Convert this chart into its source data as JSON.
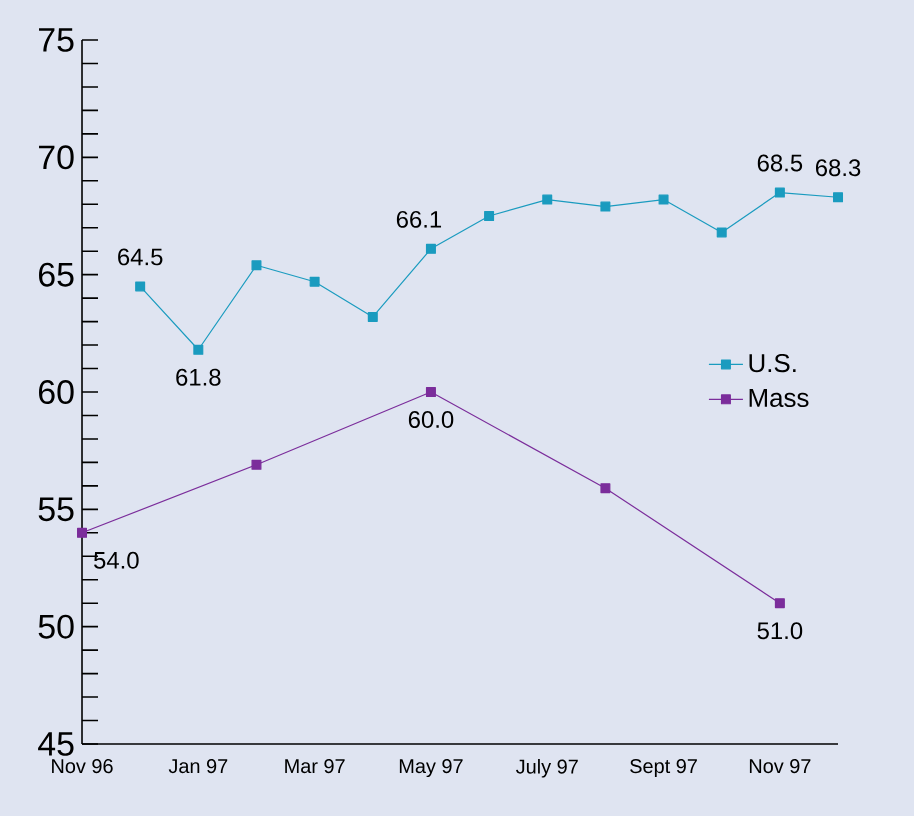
{
  "chart_data": {
    "type": "line",
    "x": [
      "1996-12",
      "1997-01",
      "1997-02",
      "1997-03",
      "1997-04",
      "1997-05",
      "1997-06",
      "1997-07",
      "1997-08",
      "1997-09",
      "1997-10",
      "1997-11",
      "1997-12"
    ],
    "series": [
      {
        "name": "U.S.",
        "color": "#1a9bbf",
        "values": [
          64.5,
          61.8,
          65.4,
          64.7,
          63.2,
          66.1,
          67.5,
          68.2,
          67.9,
          68.2,
          66.8,
          68.5,
          68.3
        ],
        "value_labels": [
          "64.5",
          "61.8",
          null,
          null,
          null,
          "66.1",
          null,
          null,
          null,
          null,
          null,
          "68.5",
          "68.3"
        ]
      },
      {
        "name": "Mass",
        "color": "#7b2d9b",
        "x": [
          "1996-11",
          "1997-02",
          "1997-05",
          "1997-08",
          "1997-11"
        ],
        "values": [
          54.0,
          56.9,
          60.0,
          55.9,
          51.0
        ],
        "value_labels": [
          "54.0",
          null,
          "60.0",
          null,
          "51.0"
        ]
      }
    ],
    "xlim": [
      "1996-11",
      "1997-12"
    ],
    "xticks": [
      {
        "value": "1996-11",
        "label": "Nov 96"
      },
      {
        "value": "1997-01",
        "label": "Jan 97"
      },
      {
        "value": "1997-03",
        "label": "Mar 97"
      },
      {
        "value": "1997-05",
        "label": "May 97"
      },
      {
        "value": "1997-07",
        "label": "July 97"
      },
      {
        "value": "1997-09",
        "label": "Sept 97"
      },
      {
        "value": "1997-11",
        "label": "Nov 97"
      }
    ],
    "ylim": [
      45,
      75
    ],
    "yticks": [
      45,
      {
        "value": 46,
        "label": null
      },
      {
        "value": 47,
        "label": null
      },
      {
        "value": 48,
        "label": null
      },
      {
        "value": 49,
        "label": null
      },
      50,
      {
        "value": 51,
        "label": null
      },
      {
        "value": 52,
        "label": null
      },
      {
        "value": 53,
        "label": null
      },
      {
        "value": 54,
        "label": null
      },
      55,
      {
        "value": 56,
        "label": null
      },
      {
        "value": 57,
        "label": null
      },
      {
        "value": 58,
        "label": null
      },
      {
        "value": 59,
        "label": null
      },
      60,
      {
        "value": 61,
        "label": null
      },
      {
        "value": 62,
        "label": null
      },
      {
        "value": 63,
        "label": null
      },
      {
        "value": 64,
        "label": null
      },
      65,
      {
        "value": 66,
        "label": null
      },
      {
        "value": 67,
        "label": null
      },
      {
        "value": 68,
        "label": null
      },
      {
        "value": 69,
        "label": null
      },
      70,
      {
        "value": 71,
        "label": null
      },
      {
        "value": 72,
        "label": null
      },
      {
        "value": 73,
        "label": null
      },
      {
        "value": 74,
        "label": null
      },
      75
    ],
    "legend": "right",
    "marker": "square",
    "line_style": "solid",
    "grid": false
  }
}
